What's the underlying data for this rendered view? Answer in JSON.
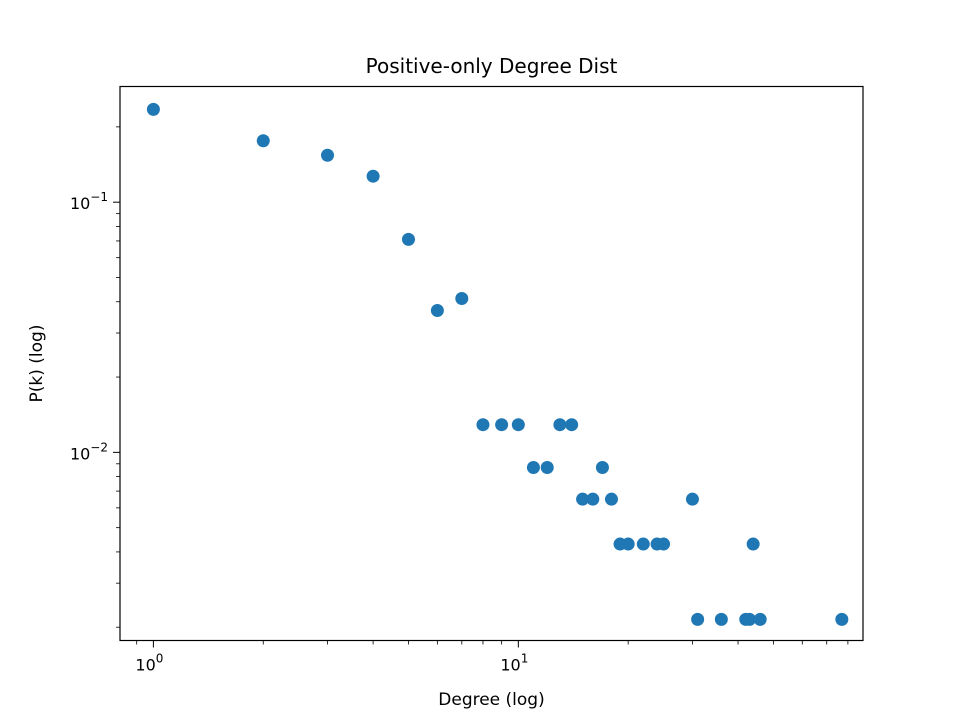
{
  "chart_data": {
    "type": "scatter",
    "title": "Positive-only Degree Dist",
    "xlabel": "Degree (log)",
    "ylabel": "P(k) (log)",
    "xscale": "log",
    "yscale": "log",
    "xlim": [
      0.81,
      88
    ],
    "ylim": [
      0.00177,
      0.29
    ],
    "grid": false,
    "marker_color": "#1f77b4",
    "x_ticks": [
      {
        "value": 1,
        "base": "10",
        "exp": "0"
      },
      {
        "value": 10,
        "base": "10",
        "exp": "1"
      }
    ],
    "y_ticks": [
      {
        "value": 0.1,
        "base": "10",
        "exp": "−1"
      },
      {
        "value": 0.01,
        "base": "10",
        "exp": "−2"
      }
    ],
    "points": [
      {
        "x": 1,
        "y": 0.235
      },
      {
        "x": 2,
        "y": 0.176
      },
      {
        "x": 3,
        "y": 0.154
      },
      {
        "x": 4,
        "y": 0.127
      },
      {
        "x": 5,
        "y": 0.071
      },
      {
        "x": 6,
        "y": 0.0369
      },
      {
        "x": 7,
        "y": 0.0412
      },
      {
        "x": 8,
        "y": 0.0129
      },
      {
        "x": 9,
        "y": 0.0129
      },
      {
        "x": 10,
        "y": 0.0129
      },
      {
        "x": 11,
        "y": 0.0087
      },
      {
        "x": 12,
        "y": 0.0087
      },
      {
        "x": 13,
        "y": 0.0129
      },
      {
        "x": 14,
        "y": 0.0129
      },
      {
        "x": 15,
        "y": 0.0065
      },
      {
        "x": 16,
        "y": 0.0065
      },
      {
        "x": 17,
        "y": 0.0087
      },
      {
        "x": 18,
        "y": 0.0065
      },
      {
        "x": 19,
        "y": 0.0043
      },
      {
        "x": 20,
        "y": 0.0043
      },
      {
        "x": 22,
        "y": 0.0043
      },
      {
        "x": 24,
        "y": 0.0043
      },
      {
        "x": 25,
        "y": 0.0043
      },
      {
        "x": 30,
        "y": 0.0065
      },
      {
        "x": 31,
        "y": 0.00215
      },
      {
        "x": 36,
        "y": 0.00215
      },
      {
        "x": 42,
        "y": 0.00215
      },
      {
        "x": 43,
        "y": 0.00215
      },
      {
        "x": 44,
        "y": 0.0043
      },
      {
        "x": 46,
        "y": 0.00215
      },
      {
        "x": 77,
        "y": 0.00215
      }
    ]
  }
}
